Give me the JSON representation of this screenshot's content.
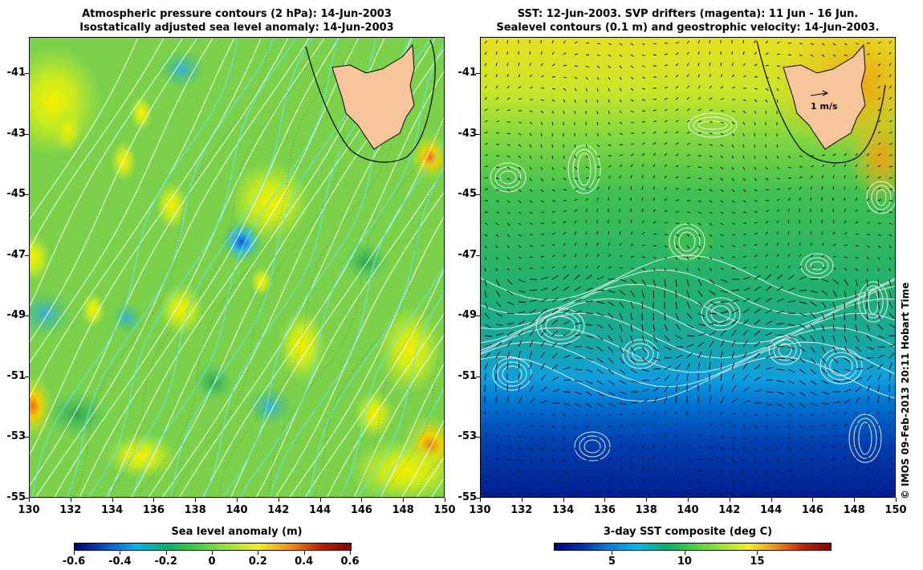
{
  "left_panel": {
    "title_line1": "Atmospheric pressure contours (2 hPa): 14-Jun-2003",
    "title_line2": "Isostatically adjusted sea level anomaly: 14-Jun-2003",
    "colorbar_label": "Sea level anomaly (m)",
    "colorbar_ticks": [
      "-0.6",
      "-0.4",
      "-0.2",
      "0",
      "0.2",
      "0.4",
      "0.6"
    ],
    "colorbar_range": [
      -0.6,
      0.6
    ],
    "colormap": [
      "#00007a",
      "#0050d0",
      "#00b4f0",
      "#00b070",
      "#40d040",
      "#a0e030",
      "#f0f020",
      "#f09010",
      "#c02000",
      "#800000"
    ]
  },
  "right_panel": {
    "title_line1": "SST: 12-Jun-2003. SVP drifters (magenta): 11 Jun - 16 Jun.",
    "title_line2": "Sealevel contours (0.1 m) and geostrophic velocity: 14-Jun-2003.",
    "colorbar_label": "3-day SST composite (deg C)",
    "colorbar_ticks": [
      "5",
      "10",
      "15"
    ],
    "colorbar_tick_values": [
      5,
      10,
      15
    ],
    "colorbar_range": [
      1,
      20
    ],
    "colormap": [
      "#00007a",
      "#0030b0",
      "#0080e0",
      "#00b8f0",
      "#00b070",
      "#40d040",
      "#a0e030",
      "#f0f020",
      "#f09010",
      "#c02000",
      "#800000"
    ],
    "velocity_scale_label": "1 m/s"
  },
  "axes": {
    "lon_ticks": [
      "130",
      "132",
      "134",
      "136",
      "138",
      "140",
      "142",
      "144",
      "146",
      "148",
      "150"
    ],
    "lat_ticks": [
      "-41",
      "-43",
      "-45",
      "-47",
      "-49",
      "-51",
      "-53",
      "-55"
    ],
    "lon_range": [
      130,
      150
    ],
    "lat_range": [
      -55,
      -39.8
    ]
  },
  "credit": "© IMOS 09-Feb-2013 20:11 Hobart Time",
  "colors": {
    "land": "#f7c59a",
    "isobar": "#ffffff",
    "ssh_contour": "#60e8e8",
    "vector": "#000000"
  }
}
